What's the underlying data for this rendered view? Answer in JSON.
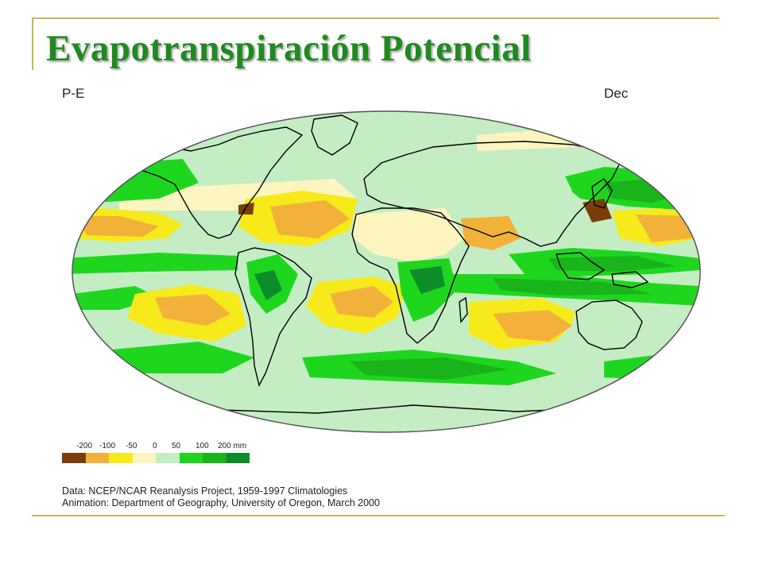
{
  "slide": {
    "title": "Evapotranspiración Potencial"
  },
  "map": {
    "variable_label": "P-E",
    "month_label": "Dec",
    "colors": {
      "land_outline": "#000000",
      "neutral_pale_yellow": "#fcf5c0",
      "light_green": "#c4edc4"
    }
  },
  "legend": {
    "tick_labels": [
      "-200",
      "-100",
      "-50",
      "0",
      "50",
      "100",
      "200 mm"
    ],
    "swatch_colors": [
      "#7a3d0a",
      "#f2b23a",
      "#f7ea1a",
      "#fcf5c0",
      "#c4edc4",
      "#1fd61f",
      "#19b419",
      "#0d8c2a"
    ]
  },
  "credits": {
    "line1": "Data:  NCEP/NCAR Reanalysis Project, 1959-1997 Climatologies",
    "line2": "Animation:  Department of Geography, University of Oregon, March 2000"
  }
}
